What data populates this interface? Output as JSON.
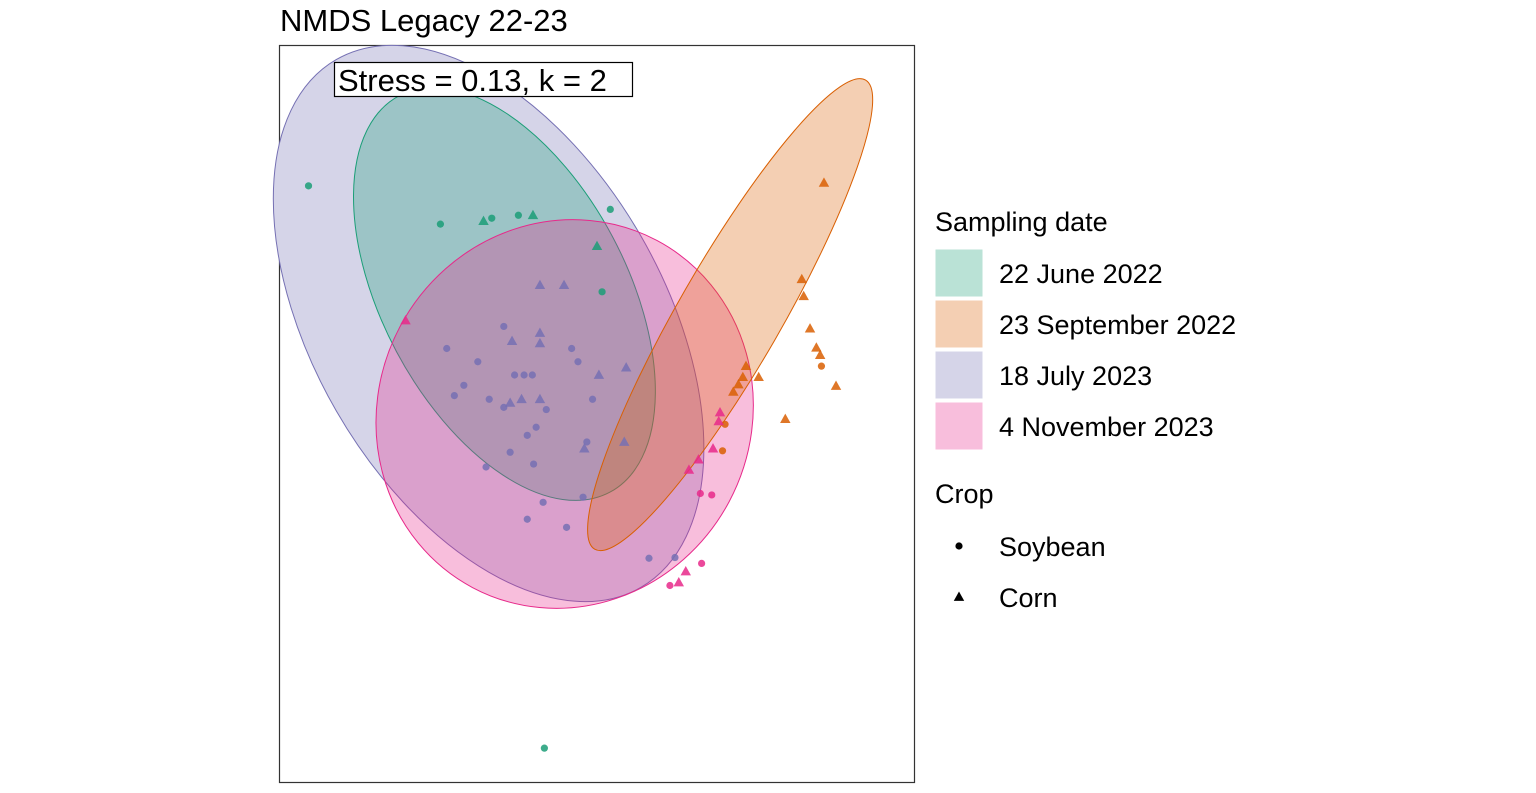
{
  "chart_data": {
    "type": "scatter",
    "title": "NMDS Legacy 22-23",
    "annotation": "Stress = 0.13, k = 2",
    "xlabel": "",
    "ylabel": "",
    "xlim": [
      0,
      1
    ],
    "ylim": [
      0,
      1
    ],
    "axes_shown": false,
    "grid": false,
    "legend_position": "right",
    "legends": [
      {
        "title": "Sampling date",
        "kind": "fill",
        "entries": [
          {
            "label": "22 June 2022",
            "color": "#1b9e77"
          },
          {
            "label": "23 September 2022",
            "color": "#d95f02"
          },
          {
            "label": "18 July 2023",
            "color": "#7570b3"
          },
          {
            "label": "4 November 2023",
            "color": "#e7298a"
          }
        ]
      },
      {
        "title": "Crop",
        "kind": "shape",
        "entries": [
          {
            "label": "Soybean",
            "shape": "circle"
          },
          {
            "label": "Corn",
            "shape": "triangle"
          }
        ]
      }
    ],
    "ellipses": [
      {
        "group": "18 July 2023",
        "color": "#7570b3",
        "fill": "#d5d4e8",
        "cx": 0.329,
        "cy": 0.623,
        "rx": 0.277,
        "ry": 0.414,
        "angle": -30
      },
      {
        "group": "22 June 2022",
        "color": "#1b9e77",
        "fill": "#1b9e77",
        "cx": 0.354,
        "cy": 0.663,
        "rx": 0.193,
        "ry": 0.305,
        "angle": -28
      },
      {
        "group": "4 November 2023",
        "color": "#e7298a",
        "fill": "#e7298a",
        "cx": 0.449,
        "cy": 0.5,
        "rx": 0.294,
        "ry": 0.267,
        "angle": 28
      },
      {
        "group": "23 September 2022",
        "color": "#d95f02",
        "fill": "#d95f02",
        "cx": 0.71,
        "cy": 0.635,
        "rx": 0.081,
        "ry": 0.368,
        "angle": 30
      }
    ],
    "series": [
      {
        "name": "22 June 2022",
        "color": "#1b9e77",
        "points": [
          {
            "x": 0.045,
            "y": 0.81,
            "crop": "Soybean"
          },
          {
            "x": 0.253,
            "y": 0.758,
            "crop": "Soybean"
          },
          {
            "x": 0.334,
            "y": 0.766,
            "crop": "Soybean"
          },
          {
            "x": 0.376,
            "y": 0.77,
            "crop": "Soybean"
          },
          {
            "x": 0.521,
            "y": 0.778,
            "crop": "Soybean"
          },
          {
            "x": 0.321,
            "y": 0.762,
            "crop": "Corn"
          },
          {
            "x": 0.399,
            "y": 0.77,
            "crop": "Corn"
          },
          {
            "x": 0.5,
            "y": 0.728,
            "crop": "Corn"
          },
          {
            "x": 0.508,
            "y": 0.666,
            "crop": "Soybean"
          },
          {
            "x": 0.417,
            "y": 0.046,
            "crop": "Soybean"
          }
        ]
      },
      {
        "name": "23 September 2022",
        "color": "#d95f02",
        "points": [
          {
            "x": 0.858,
            "y": 0.814,
            "crop": "Corn"
          },
          {
            "x": 0.823,
            "y": 0.683,
            "crop": "Corn"
          },
          {
            "x": 0.826,
            "y": 0.66,
            "crop": "Corn"
          },
          {
            "x": 0.836,
            "y": 0.616,
            "crop": "Corn"
          },
          {
            "x": 0.846,
            "y": 0.59,
            "crop": "Corn"
          },
          {
            "x": 0.852,
            "y": 0.58,
            "crop": "Corn"
          },
          {
            "x": 0.877,
            "y": 0.538,
            "crop": "Corn"
          },
          {
            "x": 0.735,
            "y": 0.565,
            "crop": "Corn"
          },
          {
            "x": 0.73,
            "y": 0.55,
            "crop": "Corn"
          },
          {
            "x": 0.755,
            "y": 0.55,
            "crop": "Corn"
          },
          {
            "x": 0.723,
            "y": 0.54,
            "crop": "Corn"
          },
          {
            "x": 0.715,
            "y": 0.53,
            "crop": "Corn"
          },
          {
            "x": 0.797,
            "y": 0.493,
            "crop": "Corn"
          },
          {
            "x": 0.854,
            "y": 0.565,
            "crop": "Soybean"
          },
          {
            "x": 0.702,
            "y": 0.486,
            "crop": "Soybean"
          },
          {
            "x": 0.698,
            "y": 0.45,
            "crop": "Soybean"
          }
        ]
      },
      {
        "name": "18 July 2023",
        "color": "#7570b3",
        "points": [
          {
            "x": 0.263,
            "y": 0.589,
            "crop": "Soybean"
          },
          {
            "x": 0.312,
            "y": 0.571,
            "crop": "Soybean"
          },
          {
            "x": 0.37,
            "y": 0.553,
            "crop": "Soybean"
          },
          {
            "x": 0.385,
            "y": 0.553,
            "crop": "Soybean"
          },
          {
            "x": 0.398,
            "y": 0.553,
            "crop": "Soybean"
          },
          {
            "x": 0.46,
            "y": 0.589,
            "crop": "Soybean"
          },
          {
            "x": 0.47,
            "y": 0.571,
            "crop": "Soybean"
          },
          {
            "x": 0.29,
            "y": 0.539,
            "crop": "Soybean"
          },
          {
            "x": 0.275,
            "y": 0.525,
            "crop": "Soybean"
          },
          {
            "x": 0.33,
            "y": 0.52,
            "crop": "Soybean"
          },
          {
            "x": 0.353,
            "y": 0.509,
            "crop": "Soybean"
          },
          {
            "x": 0.42,
            "y": 0.506,
            "crop": "Soybean"
          },
          {
            "x": 0.493,
            "y": 0.52,
            "crop": "Soybean"
          },
          {
            "x": 0.404,
            "y": 0.482,
            "crop": "Soybean"
          },
          {
            "x": 0.39,
            "y": 0.471,
            "crop": "Soybean"
          },
          {
            "x": 0.484,
            "y": 0.462,
            "crop": "Soybean"
          },
          {
            "x": 0.363,
            "y": 0.448,
            "crop": "Soybean"
          },
          {
            "x": 0.4,
            "y": 0.432,
            "crop": "Soybean"
          },
          {
            "x": 0.325,
            "y": 0.428,
            "crop": "Soybean"
          },
          {
            "x": 0.415,
            "y": 0.38,
            "crop": "Soybean"
          },
          {
            "x": 0.478,
            "y": 0.387,
            "crop": "Soybean"
          },
          {
            "x": 0.39,
            "y": 0.357,
            "crop": "Soybean"
          },
          {
            "x": 0.452,
            "y": 0.346,
            "crop": "Soybean"
          },
          {
            "x": 0.582,
            "y": 0.304,
            "crop": "Soybean"
          },
          {
            "x": 0.623,
            "y": 0.305,
            "crop": "Soybean"
          },
          {
            "x": 0.353,
            "y": 0.619,
            "crop": "Soybean"
          },
          {
            "x": 0.41,
            "y": 0.61,
            "crop": "Corn"
          },
          {
            "x": 0.366,
            "y": 0.599,
            "crop": "Corn"
          },
          {
            "x": 0.41,
            "y": 0.596,
            "crop": "Corn"
          },
          {
            "x": 0.503,
            "y": 0.553,
            "crop": "Corn"
          },
          {
            "x": 0.546,
            "y": 0.563,
            "crop": "Corn"
          },
          {
            "x": 0.363,
            "y": 0.515,
            "crop": "Corn"
          },
          {
            "x": 0.381,
            "y": 0.52,
            "crop": "Corn"
          },
          {
            "x": 0.41,
            "y": 0.52,
            "crop": "Corn"
          },
          {
            "x": 0.48,
            "y": 0.453,
            "crop": "Corn"
          },
          {
            "x": 0.543,
            "y": 0.462,
            "crop": "Corn"
          },
          {
            "x": 0.41,
            "y": 0.675,
            "crop": "Corn"
          },
          {
            "x": 0.448,
            "y": 0.675,
            "crop": "Corn"
          }
        ]
      },
      {
        "name": "4 November 2023",
        "color": "#e7298a",
        "points": [
          {
            "x": 0.198,
            "y": 0.627,
            "crop": "Corn"
          },
          {
            "x": 0.692,
            "y": 0.49,
            "crop": "Corn"
          },
          {
            "x": 0.694,
            "y": 0.502,
            "crop": "Corn"
          },
          {
            "x": 0.683,
            "y": 0.453,
            "crop": "Corn"
          },
          {
            "x": 0.66,
            "y": 0.438,
            "crop": "Corn"
          },
          {
            "x": 0.645,
            "y": 0.424,
            "crop": "Corn"
          },
          {
            "x": 0.64,
            "y": 0.286,
            "crop": "Corn"
          },
          {
            "x": 0.629,
            "y": 0.271,
            "crop": "Corn"
          },
          {
            "x": 0.665,
            "y": 0.297,
            "crop": "Soybean"
          },
          {
            "x": 0.663,
            "y": 0.392,
            "crop": "Soybean"
          },
          {
            "x": 0.615,
            "y": 0.267,
            "crop": "Soybean"
          },
          {
            "x": 0.681,
            "y": 0.39,
            "crop": "Soybean"
          }
        ]
      }
    ]
  }
}
